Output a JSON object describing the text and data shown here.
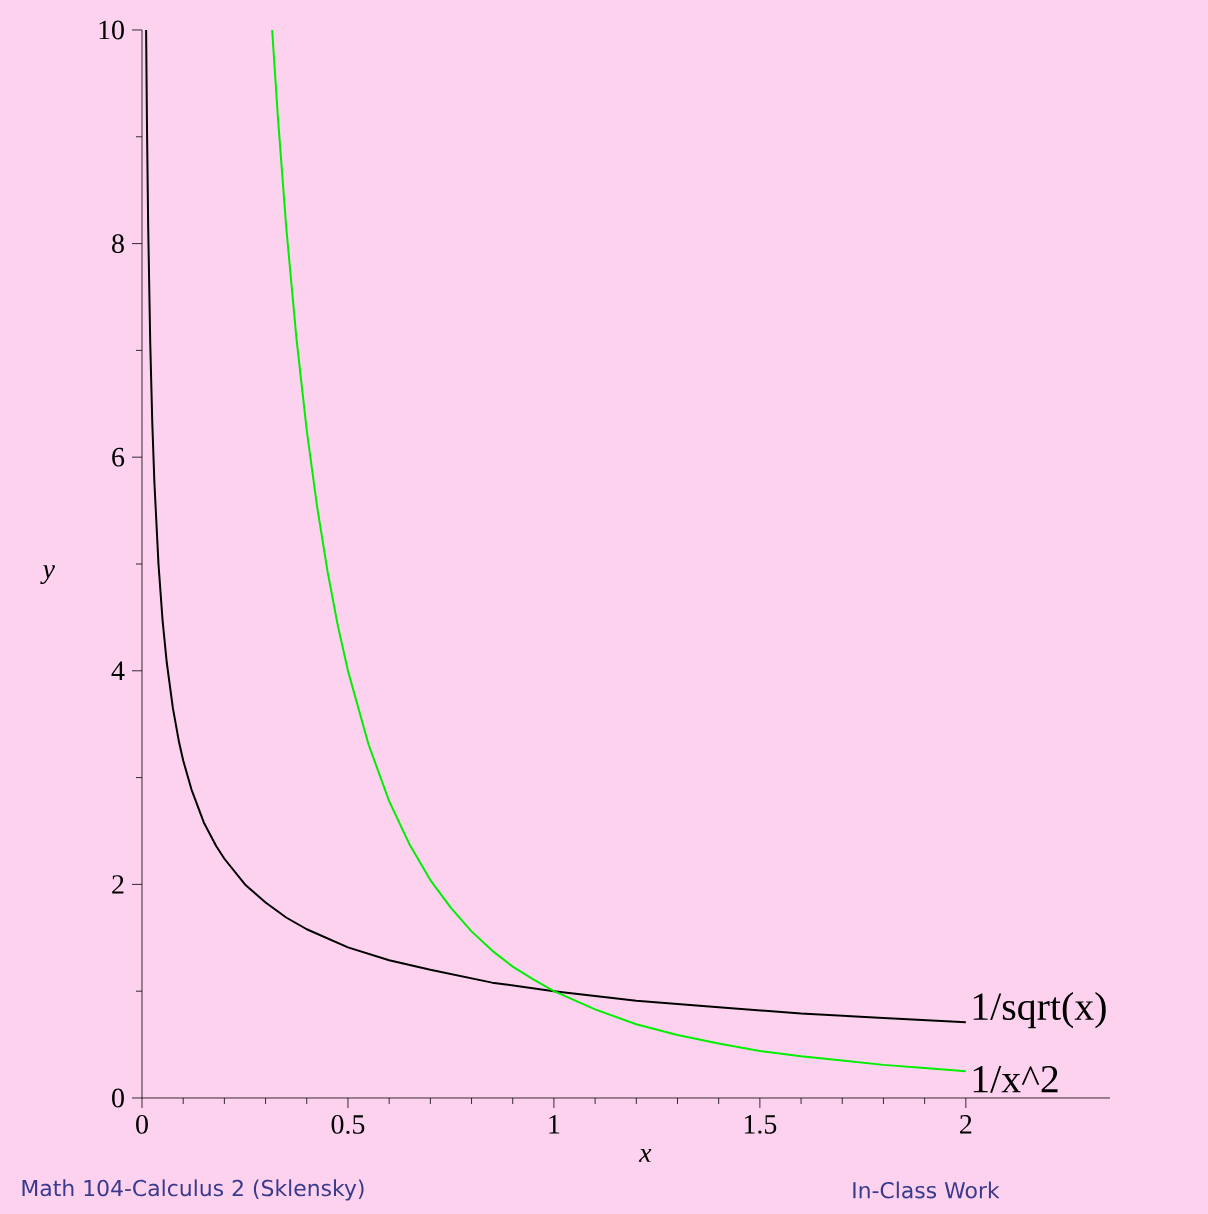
{
  "chart_data": {
    "type": "line",
    "xlabel": "x",
    "ylabel": "y",
    "xlim": [
      0,
      2.35
    ],
    "ylim": [
      0,
      10
    ],
    "xticks": [
      0,
      0.5,
      1,
      1.5,
      2
    ],
    "yticks": [
      0,
      2,
      4,
      6,
      8,
      10
    ],
    "series": [
      {
        "name": "1/sqrt(x)",
        "color": "#000000",
        "x": [
          0.01,
          0.012,
          0.015,
          0.02,
          0.025,
          0.03,
          0.04,
          0.05,
          0.06,
          0.075,
          0.09,
          0.1,
          0.12,
          0.15,
          0.18,
          0.2,
          0.25,
          0.3,
          0.35,
          0.4,
          0.5,
          0.6,
          0.7,
          0.85,
          1,
          1.2,
          1.4,
          1.6,
          1.8,
          2
        ],
        "values": [
          10,
          9.13,
          8.16,
          7.07,
          6.32,
          5.77,
          5,
          4.47,
          4.08,
          3.65,
          3.33,
          3.16,
          2.89,
          2.58,
          2.36,
          2.24,
          2,
          1.83,
          1.69,
          1.58,
          1.41,
          1.29,
          1.2,
          1.08,
          1,
          0.91,
          0.85,
          0.79,
          0.75,
          0.71
        ]
      },
      {
        "name": "1/x^2",
        "color": "#00ee00",
        "x": [
          0.316,
          0.33,
          0.35,
          0.375,
          0.4,
          0.425,
          0.45,
          0.475,
          0.5,
          0.55,
          0.6,
          0.65,
          0.7,
          0.75,
          0.8,
          0.85,
          0.9,
          0.95,
          1,
          1.1,
          1.2,
          1.3,
          1.4,
          1.5,
          1.6,
          1.7,
          1.8,
          1.9,
          2
        ],
        "values": [
          10,
          9.18,
          8.16,
          7.11,
          6.25,
          5.54,
          4.94,
          4.43,
          4,
          3.31,
          2.78,
          2.37,
          2.04,
          1.78,
          1.56,
          1.38,
          1.23,
          1.11,
          1,
          0.83,
          0.69,
          0.59,
          0.51,
          0.44,
          0.39,
          0.35,
          0.31,
          0.28,
          0.25
        ]
      }
    ],
    "annotations": [
      "Math 104-Calculus 2  (Sklensky)",
      "In-Class Work"
    ]
  }
}
